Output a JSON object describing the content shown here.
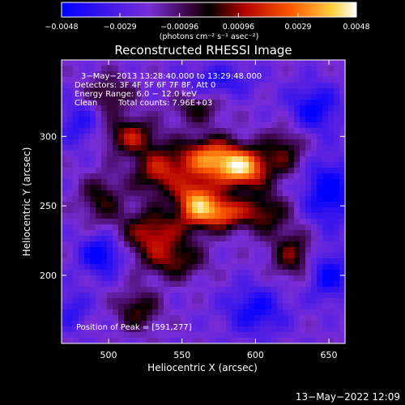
{
  "chart_data": {
    "type": "heatmap",
    "title": "Reconstructed RHESSI Image",
    "xlabel": "Heliocentric X (arcsec)",
    "ylabel": "Heliocentric Y (arcsec)",
    "xlim": [
      468,
      661
    ],
    "ylim": [
      151,
      355
    ],
    "x_ticks": [
      500,
      550,
      600,
      650
    ],
    "y_ticks": [
      200,
      250,
      300
    ],
    "colorbar": {
      "range": [
        -0.0048,
        0.0048
      ],
      "tick_values": [
        -0.0048,
        -0.0029,
        -0.00096,
        0.00096,
        0.0029,
        0.0048
      ],
      "tick_labels": [
        "−0.0048",
        "−0.0029",
        "−0.00096",
        "0.00096",
        "0.0029",
        "0.0048"
      ],
      "unit_label": "(photons cm⁻² s⁻¹ asec⁻²)",
      "colors": [
        "#0000ff",
        "#7a2dd6",
        "#300030",
        "#000000",
        "#b40000",
        "#ff5a00",
        "#ffd040",
        "#ffffff"
      ]
    },
    "annotations": {
      "time_range": "3−May−2013 13:28:40.000 to 13:29:48.000",
      "detectors": "Detectors: 3F 4F 5F 6F 7F 8F, Att 0",
      "energy_range": "Energy Range: 6.0 − 12.0 keV",
      "method": "Clean",
      "total_counts": "Total counts: 7.96E+03",
      "peak": "Position of Peak = [591,277]"
    },
    "peak_position": [
      591,
      277
    ],
    "sources": [
      {
        "x": 591,
        "y": 277,
        "amp": 0.0048,
        "sx": 13,
        "sy": 10
      },
      {
        "x": 568,
        "y": 285,
        "amp": 0.0036,
        "sx": 14,
        "sy": 10
      },
      {
        "x": 560,
        "y": 252,
        "amp": 0.0044,
        "sx": 10,
        "sy": 12
      },
      {
        "x": 578,
        "y": 245,
        "amp": 0.0032,
        "sx": 10,
        "sy": 8
      },
      {
        "x": 535,
        "y": 275,
        "amp": 0.0026,
        "sx": 13,
        "sy": 12
      },
      {
        "x": 515,
        "y": 300,
        "amp": 0.0024,
        "sx": 12,
        "sy": 9
      },
      {
        "x": 530,
        "y": 230,
        "amp": 0.0026,
        "sx": 15,
        "sy": 12
      },
      {
        "x": 605,
        "y": 245,
        "amp": 0.002,
        "sx": 12,
        "sy": 10
      },
      {
        "x": 495,
        "y": 255,
        "amp": 0.0014,
        "sx": 10,
        "sy": 12
      },
      {
        "x": 620,
        "y": 290,
        "amp": 0.0014,
        "sx": 10,
        "sy": 12
      },
      {
        "x": 625,
        "y": 215,
        "amp": 0.0018,
        "sx": 10,
        "sy": 12
      },
      {
        "x": 545,
        "y": 210,
        "amp": 0.0016,
        "sx": 14,
        "sy": 9
      },
      {
        "x": 520,
        "y": 175,
        "amp": 0.0016,
        "sx": 10,
        "sy": 10
      },
      {
        "x": 500,
        "y": 330,
        "amp": 0.0012,
        "sx": 12,
        "sy": 10
      },
      {
        "x": 560,
        "y": 320,
        "amp": 0.0011,
        "sx": 12,
        "sy": 8
      }
    ],
    "negative_regions": [
      {
        "x": 495,
        "y": 215,
        "amp": -0.003,
        "sx": 10,
        "sy": 10
      },
      {
        "x": 650,
        "y": 260,
        "amp": -0.003,
        "sx": 12,
        "sy": 16
      },
      {
        "x": 640,
        "y": 320,
        "amp": -0.0026,
        "sx": 12,
        "sy": 12
      },
      {
        "x": 600,
        "y": 175,
        "amp": -0.0024,
        "sx": 14,
        "sy": 12
      },
      {
        "x": 480,
        "y": 310,
        "amp": -0.0018,
        "sx": 10,
        "sy": 12
      },
      {
        "x": 650,
        "y": 200,
        "amp": -0.0026,
        "sx": 10,
        "sy": 12
      },
      {
        "x": 575,
        "y": 340,
        "amp": -0.0018,
        "sx": 16,
        "sy": 8
      },
      {
        "x": 475,
        "y": 175,
        "amp": -0.0016,
        "sx": 8,
        "sy": 10
      }
    ]
  },
  "footer": {
    "timestamp": "13−May−2022 12:09"
  }
}
